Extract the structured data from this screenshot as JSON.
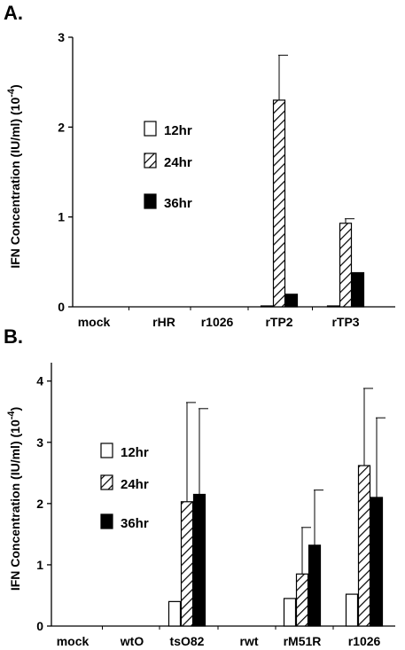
{
  "chart_data": [
    {
      "type": "bar",
      "panel_label": "A.",
      "ylabel": "IFN Concentration (IU/ml) (10",
      "ylabel_exp": "-4",
      "ylabel_close": ")",
      "ylim": [
        0,
        3
      ],
      "yticks": [
        "0",
        "1",
        "2",
        "3"
      ],
      "categories": [
        "mock",
        "rHR",
        "r1026",
        "rTP2",
        "rTP3"
      ],
      "series": [
        {
          "name": "12hr",
          "fill": "white",
          "values": [
            0,
            0,
            0,
            0.01,
            0.01
          ],
          "error": [
            0,
            0,
            0,
            0,
            0
          ]
        },
        {
          "name": "24hr",
          "fill": "hatch",
          "values": [
            0,
            0,
            0,
            2.3,
            0.93
          ],
          "error": [
            0,
            0,
            0,
            0.5,
            0.05
          ]
        },
        {
          "name": "36hr",
          "fill": "black",
          "values": [
            0,
            0,
            0,
            0.14,
            0.38
          ],
          "error": [
            0,
            0,
            0,
            0,
            0
          ]
        }
      ],
      "legend_placement": "center-left",
      "grid": false
    },
    {
      "type": "bar",
      "panel_label": "B.",
      "ylabel": "IFN Concentration (IU/ml) (10",
      "ylabel_exp": "-4",
      "ylabel_close": ")",
      "ylim": [
        0,
        4.3
      ],
      "yticks": [
        "0",
        "1",
        "2",
        "3",
        "4"
      ],
      "categories": [
        "mock",
        "wtO",
        "tsO82",
        "rwt",
        "rM51R",
        "r1026"
      ],
      "series": [
        {
          "name": "12hr",
          "fill": "white",
          "values": [
            0,
            0,
            0.4,
            0,
            0.45,
            0.52
          ],
          "error": [
            0,
            0,
            0,
            0,
            0,
            0
          ]
        },
        {
          "name": "24hr",
          "fill": "hatch",
          "values": [
            0,
            0,
            2.03,
            0,
            0.85,
            2.62
          ],
          "error": [
            0,
            0,
            1.62,
            0,
            0.76,
            1.26
          ]
        },
        {
          "name": "36hr",
          "fill": "black",
          "values": [
            0,
            0,
            2.15,
            0,
            1.32,
            2.1
          ],
          "error": [
            0,
            0,
            1.4,
            0,
            0.9,
            1.3
          ]
        }
      ],
      "legend_placement": "center-left",
      "grid": false
    }
  ]
}
